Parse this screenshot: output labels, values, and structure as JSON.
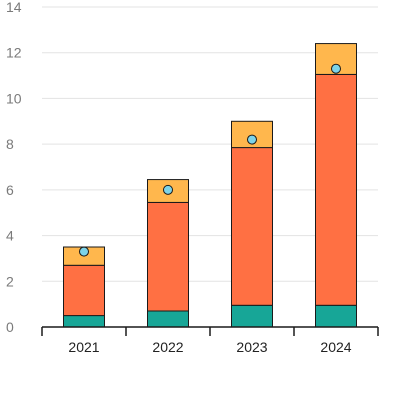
{
  "chart_data": {
    "type": "bar",
    "stacked": true,
    "title": "",
    "xlabel": "",
    "ylabel": "",
    "categories": [
      "2021",
      "2022",
      "2023",
      "2024"
    ],
    "ylim": [
      0,
      14
    ],
    "yticks": [
      0,
      2,
      4,
      6,
      8,
      10,
      12,
      14
    ],
    "grid": true,
    "legend": "none",
    "series": [
      {
        "values": [
          0.5,
          0.7,
          0.95,
          0.95
        ],
        "color": "#17a697"
      },
      {
        "values": [
          2.2,
          4.75,
          6.9,
          10.1
        ],
        "color": "#ff7043"
      },
      {
        "values": [
          0.8,
          1.0,
          1.15,
          1.35
        ],
        "color": "#ffb74d"
      }
    ],
    "markers": {
      "values": [
        3.3,
        6.0,
        8.2,
        11.3
      ],
      "color": "#7dd3e8"
    }
  }
}
